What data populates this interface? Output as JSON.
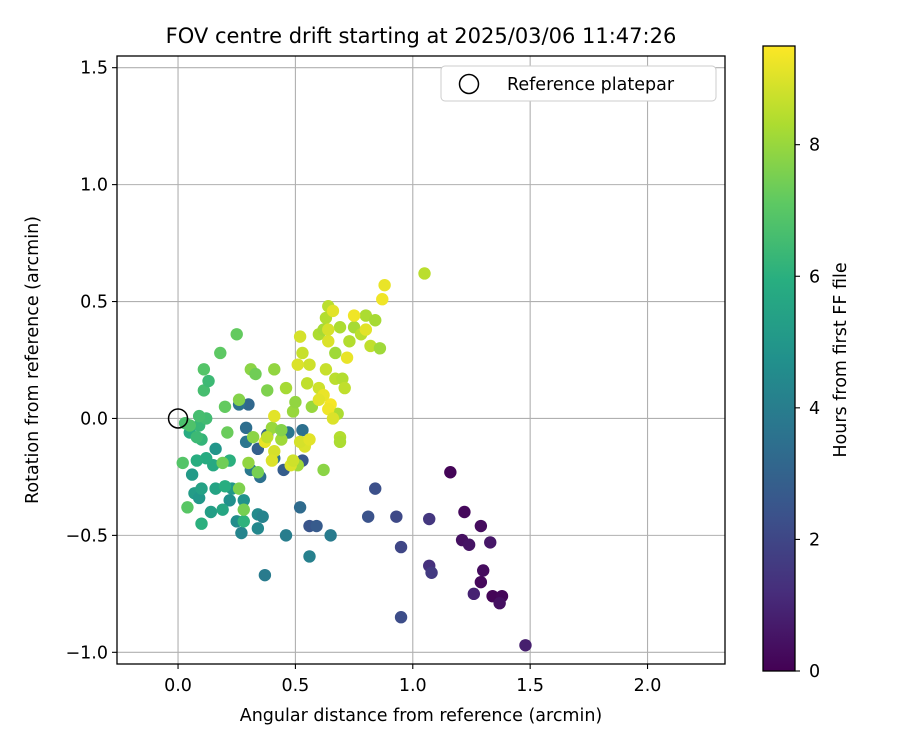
{
  "chart_data": {
    "type": "scatter",
    "title": "FOV centre drift starting at 2025/03/06 11:47:26",
    "xlabel": "Angular distance from reference (arcmin)",
    "ylabel": "Rotation from reference (arcmin)",
    "xlim": [
      -0.26,
      2.33
    ],
    "ylim": [
      -1.05,
      1.55
    ],
    "xticks": [
      0.0,
      0.5,
      1.0,
      1.5,
      2.0
    ],
    "xtick_labels": [
      "0.0",
      "0.5",
      "1.0",
      "1.5",
      "2.0"
    ],
    "yticks": [
      -1.0,
      -0.5,
      0.0,
      0.5,
      1.0,
      1.5
    ],
    "ytick_labels": [
      "−1.0",
      "−0.5",
      "0.0",
      "0.5",
      "1.0",
      "1.5"
    ],
    "grid": true,
    "legend": {
      "position": "top-right",
      "label": "Reference platepar"
    },
    "reference_point": {
      "x": 0.0,
      "y": 0.0
    },
    "colorbar": {
      "label": "Hours from first FF file",
      "colormap": "viridis",
      "range": [
        0,
        9.5
      ],
      "ticks": [
        0,
        2,
        4,
        6,
        8
      ],
      "tick_labels": [
        "0",
        "2",
        "4",
        "6",
        "8"
      ]
    },
    "series": [
      {
        "points": [
          {
            "x": 1.16,
            "y": -0.23,
            "c": 0.1
          },
          {
            "x": 1.22,
            "y": -0.4,
            "c": 0.2
          },
          {
            "x": 1.29,
            "y": -0.46,
            "c": 0.3
          },
          {
            "x": 1.21,
            "y": -0.52,
            "c": 0.4
          },
          {
            "x": 1.24,
            "y": -0.54,
            "c": 0.5
          },
          {
            "x": 1.33,
            "y": -0.53,
            "c": 0.6
          },
          {
            "x": 1.3,
            "y": -0.65,
            "c": 0.3
          },
          {
            "x": 1.29,
            "y": -0.7,
            "c": 0.2
          },
          {
            "x": 1.34,
            "y": -0.76,
            "c": 0.1
          },
          {
            "x": 1.38,
            "y": -0.76,
            "c": 0.15
          },
          {
            "x": 1.37,
            "y": -0.79,
            "c": 0.4
          },
          {
            "x": 1.26,
            "y": -0.75,
            "c": 0.9
          },
          {
            "x": 1.48,
            "y": -0.97,
            "c": 0.8
          },
          {
            "x": 1.07,
            "y": -0.43,
            "c": 1.5
          },
          {
            "x": 1.07,
            "y": -0.63,
            "c": 1.3
          },
          {
            "x": 1.08,
            "y": -0.66,
            "c": 1.6
          },
          {
            "x": 0.95,
            "y": -0.55,
            "c": 2.0
          },
          {
            "x": 0.93,
            "y": -0.42,
            "c": 2.1
          },
          {
            "x": 0.95,
            "y": -0.85,
            "c": 2.2
          },
          {
            "x": 0.84,
            "y": -0.3,
            "c": 2.3
          },
          {
            "x": 0.81,
            "y": -0.42,
            "c": 2.4
          },
          {
            "x": 0.56,
            "y": -0.46,
            "c": 2.5
          },
          {
            "x": 0.59,
            "y": -0.46,
            "c": 2.7
          },
          {
            "x": 0.53,
            "y": -0.18,
            "c": 2.6
          },
          {
            "x": 0.45,
            "y": -0.22,
            "c": 2.8
          },
          {
            "x": 0.34,
            "y": -0.13,
            "c": 2.9
          },
          {
            "x": 0.38,
            "y": -0.07,
            "c": 3.0
          },
          {
            "x": 0.36,
            "y": -0.42,
            "c": 3.1
          },
          {
            "x": 0.52,
            "y": -0.38,
            "c": 3.3
          },
          {
            "x": 0.3,
            "y": 0.06,
            "c": 3.2
          },
          {
            "x": 0.29,
            "y": -0.04,
            "c": 3.4
          },
          {
            "x": 0.35,
            "y": -0.25,
            "c": 3.5
          },
          {
            "x": 0.26,
            "y": 0.06,
            "c": 3.6
          },
          {
            "x": 0.29,
            "y": -0.1,
            "c": 3.7
          },
          {
            "x": 0.31,
            "y": -0.22,
            "c": 3.8
          },
          {
            "x": 0.37,
            "y": -0.67,
            "c": 3.9
          },
          {
            "x": 0.46,
            "y": -0.5,
            "c": 4.0
          },
          {
            "x": 0.56,
            "y": -0.59,
            "c": 4.1
          },
          {
            "x": 0.65,
            "y": -0.5,
            "c": 3.9
          },
          {
            "x": 0.41,
            "y": -0.17,
            "c": 3.6
          },
          {
            "x": 0.53,
            "y": -0.05,
            "c": 3.5
          },
          {
            "x": 0.47,
            "y": -0.06,
            "c": 3.7
          },
          {
            "x": 0.27,
            "y": -0.49,
            "c": 4.3
          },
          {
            "x": 0.34,
            "y": -0.47,
            "c": 4.4
          },
          {
            "x": 0.34,
            "y": -0.41,
            "c": 4.5
          },
          {
            "x": 0.36,
            "y": -0.42,
            "c": 4.2
          },
          {
            "x": 0.25,
            "y": -0.44,
            "c": 4.6
          },
          {
            "x": 0.22,
            "y": -0.35,
            "c": 4.7
          },
          {
            "x": 0.28,
            "y": -0.35,
            "c": 4.8
          },
          {
            "x": 0.16,
            "y": -0.13,
            "c": 4.9
          },
          {
            "x": 0.23,
            "y": -0.3,
            "c": 5.0
          },
          {
            "x": 0.06,
            "y": -0.24,
            "c": 5.1
          },
          {
            "x": 0.07,
            "y": -0.32,
            "c": 5.2
          },
          {
            "x": 0.14,
            "y": -0.4,
            "c": 5.3
          },
          {
            "x": 0.09,
            "y": -0.34,
            "c": 5.0
          },
          {
            "x": 0.1,
            "y": -0.3,
            "c": 5.4
          },
          {
            "x": 0.16,
            "y": -0.3,
            "c": 5.5
          },
          {
            "x": 0.19,
            "y": -0.39,
            "c": 5.6
          },
          {
            "x": 0.15,
            "y": -0.2,
            "c": 5.7
          },
          {
            "x": 0.12,
            "y": -0.17,
            "c": 5.8
          },
          {
            "x": 0.08,
            "y": -0.18,
            "c": 5.9
          },
          {
            "x": 0.1,
            "y": -0.45,
            "c": 6.0
          },
          {
            "x": 0.28,
            "y": -0.44,
            "c": 6.1
          },
          {
            "x": 0.2,
            "y": -0.29,
            "c": 5.9
          },
          {
            "x": 0.22,
            "y": -0.18,
            "c": 6.0
          },
          {
            "x": 0.05,
            "y": -0.06,
            "c": 5.8
          },
          {
            "x": 0.1,
            "y": -0.09,
            "c": 6.2
          },
          {
            "x": 0.09,
            "y": -0.03,
            "c": 6.3
          },
          {
            "x": 0.08,
            "y": -0.08,
            "c": 6.4
          },
          {
            "x": 0.12,
            "y": 0.0,
            "c": 6.5
          },
          {
            "x": 0.09,
            "y": 0.01,
            "c": 6.6
          },
          {
            "x": 0.03,
            "y": -0.02,
            "c": 6.7
          },
          {
            "x": 0.05,
            "y": -0.03,
            "c": 6.8
          },
          {
            "x": 0.02,
            "y": -0.19,
            "c": 6.9
          },
          {
            "x": 0.04,
            "y": -0.38,
            "c": 7.0
          },
          {
            "x": 0.11,
            "y": 0.12,
            "c": 6.6
          },
          {
            "x": 0.13,
            "y": 0.16,
            "c": 6.4
          },
          {
            "x": 0.11,
            "y": 0.21,
            "c": 6.9
          },
          {
            "x": 0.18,
            "y": 0.28,
            "c": 7.1
          },
          {
            "x": 0.2,
            "y": 0.05,
            "c": 7.2
          },
          {
            "x": 0.21,
            "y": -0.06,
            "c": 7.3
          },
          {
            "x": 0.19,
            "y": -0.19,
            "c": 7.4
          },
          {
            "x": 0.28,
            "y": -0.39,
            "c": 7.5
          },
          {
            "x": 0.26,
            "y": -0.3,
            "c": 7.6
          },
          {
            "x": 0.25,
            "y": 0.36,
            "c": 7.2
          },
          {
            "x": 0.26,
            "y": 0.08,
            "c": 7.7
          },
          {
            "x": 0.31,
            "y": 0.21,
            "c": 7.8
          },
          {
            "x": 0.33,
            "y": 0.19,
            "c": 7.4
          },
          {
            "x": 0.38,
            "y": 0.12,
            "c": 7.6
          },
          {
            "x": 0.41,
            "y": 0.21,
            "c": 7.9
          },
          {
            "x": 0.3,
            "y": -0.19,
            "c": 7.9
          },
          {
            "x": 0.32,
            "y": -0.08,
            "c": 7.8
          },
          {
            "x": 0.34,
            "y": -0.23,
            "c": 7.5
          },
          {
            "x": 0.4,
            "y": -0.04,
            "c": 8.0
          },
          {
            "x": 0.44,
            "y": -0.09,
            "c": 8.1
          },
          {
            "x": 0.46,
            "y": 0.13,
            "c": 8.2
          },
          {
            "x": 0.49,
            "y": 0.03,
            "c": 8.0
          },
          {
            "x": 0.5,
            "y": 0.07,
            "c": 7.9
          },
          {
            "x": 0.44,
            "y": -0.05,
            "c": 7.7
          },
          {
            "x": 0.62,
            "y": -0.22,
            "c": 7.8
          },
          {
            "x": 0.51,
            "y": -0.2,
            "c": 8.1
          },
          {
            "x": 0.57,
            "y": 0.05,
            "c": 8.0
          },
          {
            "x": 0.6,
            "y": 0.36,
            "c": 8.3
          },
          {
            "x": 0.63,
            "y": 0.43,
            "c": 8.4
          },
          {
            "x": 0.64,
            "y": 0.48,
            "c": 8.5
          },
          {
            "x": 0.62,
            "y": 0.38,
            "c": 8.2
          },
          {
            "x": 0.67,
            "y": 0.28,
            "c": 8.1
          },
          {
            "x": 0.69,
            "y": 0.39,
            "c": 8.3
          },
          {
            "x": 0.73,
            "y": 0.33,
            "c": 8.4
          },
          {
            "x": 0.75,
            "y": 0.39,
            "c": 8.2
          },
          {
            "x": 0.78,
            "y": 0.36,
            "c": 8.5
          },
          {
            "x": 0.8,
            "y": 0.44,
            "c": 8.3
          },
          {
            "x": 0.84,
            "y": 0.42,
            "c": 8.2
          },
          {
            "x": 0.82,
            "y": 0.31,
            "c": 8.6
          },
          {
            "x": 0.86,
            "y": 0.3,
            "c": 8.1
          },
          {
            "x": 1.05,
            "y": 0.62,
            "c": 8.5
          },
          {
            "x": 0.63,
            "y": 0.21,
            "c": 8.7
          },
          {
            "x": 0.68,
            "y": 0.02,
            "c": 8.3
          },
          {
            "x": 0.69,
            "y": -0.08,
            "c": 8.4
          },
          {
            "x": 0.69,
            "y": -0.1,
            "c": 8.3
          },
          {
            "x": 0.67,
            "y": 0.17,
            "c": 8.5
          },
          {
            "x": 0.7,
            "y": 0.17,
            "c": 8.4
          },
          {
            "x": 0.71,
            "y": 0.13,
            "c": 8.6
          },
          {
            "x": 0.55,
            "y": 0.15,
            "c": 8.6
          },
          {
            "x": 0.53,
            "y": 0.28,
            "c": 8.7
          },
          {
            "x": 0.6,
            "y": 0.13,
            "c": 8.8
          },
          {
            "x": 0.56,
            "y": 0.23,
            "c": 8.8
          },
          {
            "x": 0.52,
            "y": 0.35,
            "c": 8.9
          },
          {
            "x": 0.51,
            "y": 0.23,
            "c": 9.0
          },
          {
            "x": 0.64,
            "y": 0.33,
            "c": 9.0
          },
          {
            "x": 0.64,
            "y": 0.38,
            "c": 8.9
          },
          {
            "x": 0.66,
            "y": 0.46,
            "c": 9.1
          },
          {
            "x": 0.72,
            "y": 0.26,
            "c": 9.2
          },
          {
            "x": 0.75,
            "y": 0.44,
            "c": 9.3
          },
          {
            "x": 0.8,
            "y": 0.38,
            "c": 9.1
          },
          {
            "x": 0.88,
            "y": 0.57,
            "c": 9.2
          },
          {
            "x": 0.87,
            "y": 0.51,
            "c": 9.3
          },
          {
            "x": 0.65,
            "y": 0.06,
            "c": 9.4
          },
          {
            "x": 0.64,
            "y": 0.04,
            "c": 9.3
          },
          {
            "x": 0.62,
            "y": 0.1,
            "c": 9.2
          },
          {
            "x": 0.6,
            "y": 0.08,
            "c": 9.1
          },
          {
            "x": 0.66,
            "y": 0.0,
            "c": 9.0
          },
          {
            "x": 0.54,
            "y": -0.12,
            "c": 9.0
          },
          {
            "x": 0.52,
            "y": -0.1,
            "c": 8.9
          },
          {
            "x": 0.56,
            "y": -0.09,
            "c": 9.1
          },
          {
            "x": 0.48,
            "y": -0.2,
            "c": 9.0
          },
          {
            "x": 0.49,
            "y": -0.18,
            "c": 8.8
          },
          {
            "x": 0.41,
            "y": -0.14,
            "c": 8.9
          },
          {
            "x": 0.4,
            "y": -0.18,
            "c": 9.0
          },
          {
            "x": 0.37,
            "y": -0.1,
            "c": 9.2
          },
          {
            "x": 0.41,
            "y": 0.01,
            "c": 9.1
          },
          {
            "x": 0.38,
            "y": -0.08,
            "c": 8.6
          }
        ]
      }
    ]
  }
}
